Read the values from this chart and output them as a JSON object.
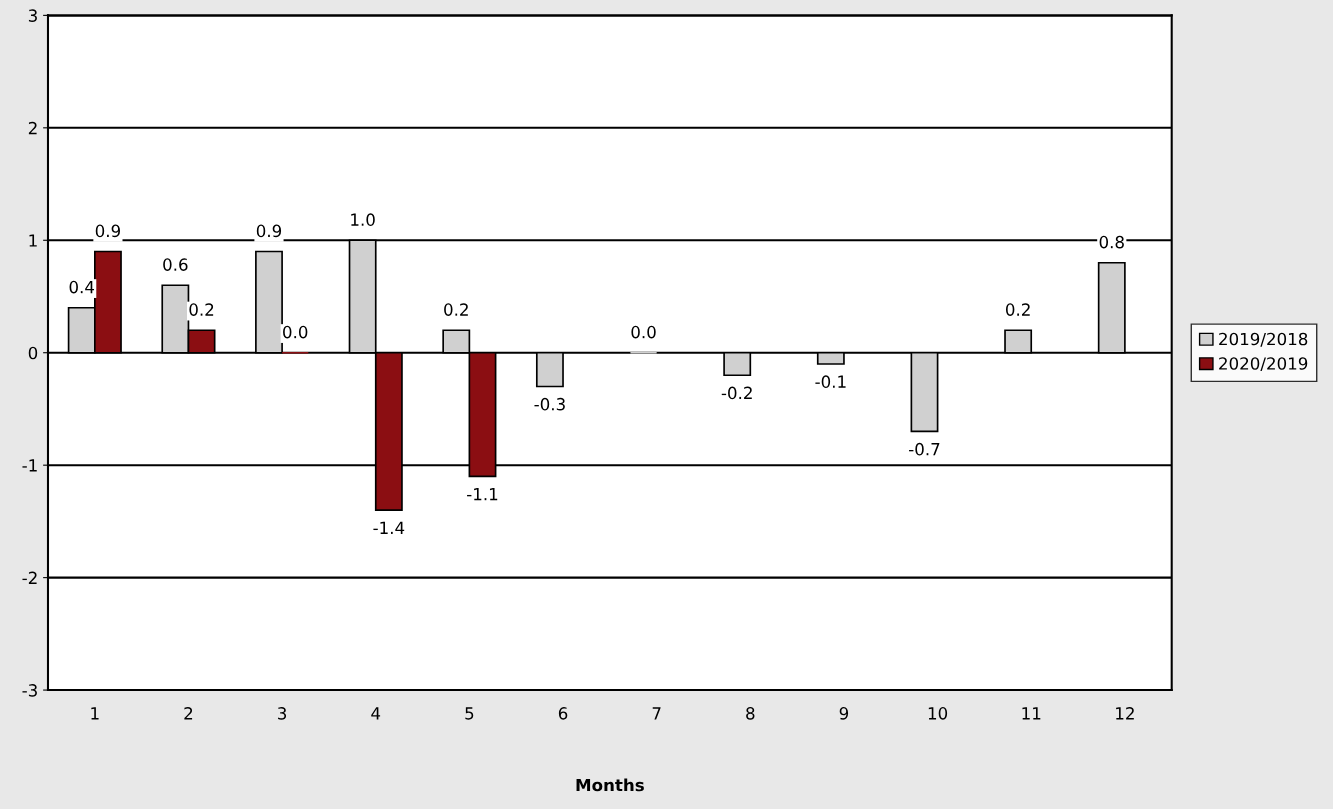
{
  "chart_data": {
    "type": "bar",
    "xlabel": "Months",
    "categories": [
      "1",
      "2",
      "3",
      "4",
      "5",
      "6",
      "7",
      "8",
      "9",
      "10",
      "11",
      "12"
    ],
    "series": [
      {
        "name": "2019/2018",
        "color": "#d0d0d0",
        "values": [
          0.4,
          0.6,
          0.9,
          1.0,
          0.2,
          -0.3,
          0.0,
          -0.2,
          -0.1,
          -0.7,
          0.2,
          0.8
        ],
        "value_labels": [
          "0.4",
          "0.6",
          "0.9",
          "1.0",
          "0.2",
          "-0.3",
          "0.0",
          "-0.2",
          "-0.1",
          "-0.7",
          "0.2",
          "0.8"
        ]
      },
      {
        "name": "2020/2019",
        "color": "#8b0e12",
        "values": [
          0.9,
          0.2,
          0.0,
          -1.4,
          -1.1,
          null,
          null,
          null,
          null,
          null,
          null,
          null
        ],
        "value_labels": [
          "0.9",
          "0.2",
          "0.0",
          "-1.4",
          "-1.1",
          null,
          null,
          null,
          null,
          null,
          null,
          null
        ]
      }
    ],
    "ylim": [
      -3,
      3
    ],
    "yticks": [
      -3,
      -2,
      -1,
      0,
      1,
      2,
      3
    ],
    "grid": "y",
    "legend": "right"
  }
}
